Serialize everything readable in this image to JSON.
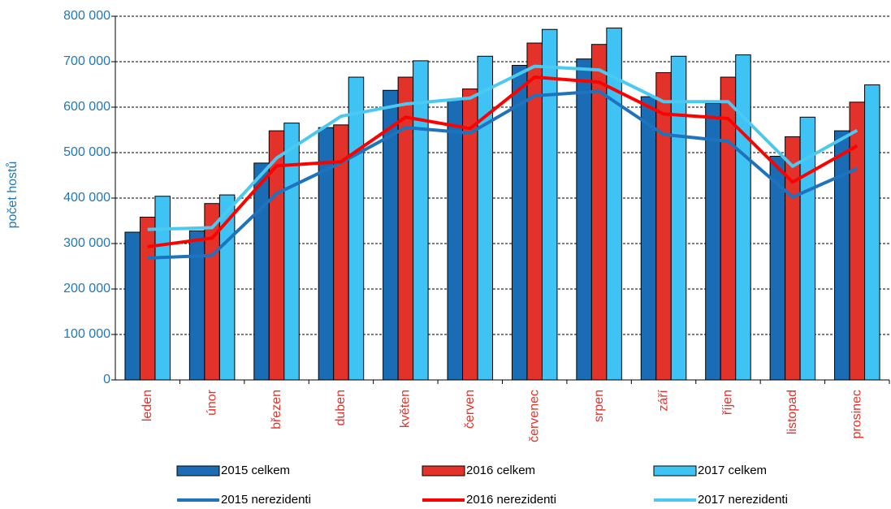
{
  "chart_data": {
    "type": "bar",
    "y_label": "počet hostů",
    "categories": [
      "leden",
      "únor",
      "březen",
      "duben",
      "květen",
      "červen",
      "červenec",
      "srpen",
      "září",
      "říjen",
      "listopad",
      "prosinec"
    ],
    "series": [
      {
        "name": "2015 celkem",
        "type": "bar",
        "color": "#1a6cb5",
        "values": [
          325000,
          328000,
          477000,
          555000,
          637000,
          615000,
          692000,
          706000,
          623000,
          608000,
          492000,
          548000
        ]
      },
      {
        "name": "2016 celkem",
        "type": "bar",
        "color": "#e2322a",
        "values": [
          358000,
          388000,
          548000,
          561000,
          666000,
          640000,
          741000,
          738000,
          676000,
          666000,
          535000,
          611000
        ]
      },
      {
        "name": "2017 celkem",
        "type": "bar",
        "color": "#3fc3f5",
        "values": [
          404000,
          407000,
          565000,
          666000,
          702000,
          712000,
          771000,
          774000,
          712000,
          715000,
          578000,
          649000
        ]
      },
      {
        "name": "2015 nerezidenti",
        "type": "line",
        "color": "#1e73be",
        "values": [
          268000,
          274000,
          410000,
          478000,
          555000,
          543000,
          625000,
          635000,
          540000,
          525000,
          402000,
          465000
        ]
      },
      {
        "name": "2016 nerezidenti",
        "type": "line",
        "color": "#ff0000",
        "values": [
          293000,
          312000,
          471000,
          480000,
          578000,
          553000,
          666000,
          655000,
          585000,
          575000,
          435000,
          515000
        ]
      },
      {
        "name": "2017 nerezidenti",
        "type": "line",
        "color": "#4cc9f0",
        "values": [
          331000,
          335000,
          488000,
          580000,
          607000,
          620000,
          690000,
          682000,
          612000,
          612000,
          470000,
          549000
        ]
      }
    ],
    "ylim": [
      0,
      800000
    ],
    "yticks": [
      0,
      {
        "value": 100000,
        "label": "100 000"
      },
      {
        "value": 200000,
        "label": "200 000"
      },
      {
        "value": 300000,
        "label": "300 000"
      },
      {
        "value": 400000,
        "label": "400 000"
      },
      {
        "value": 500000,
        "label": "500 000"
      },
      {
        "value": 600000,
        "label": "600 000"
      },
      {
        "value": 700000,
        "label": "700 000"
      },
      {
        "value": 800000,
        "label": "800 000"
      }
    ],
    "grid": true
  }
}
